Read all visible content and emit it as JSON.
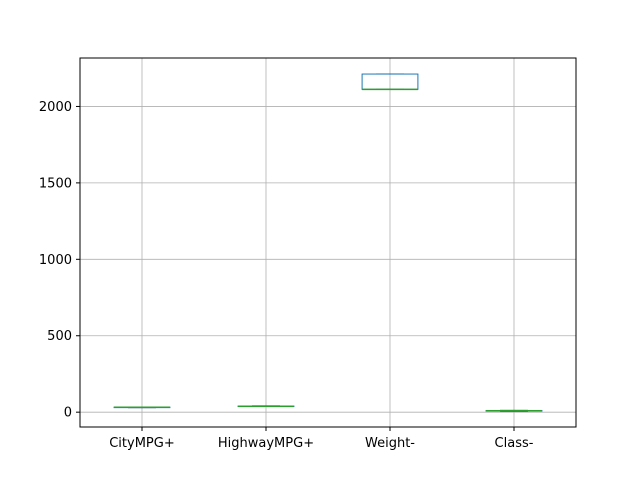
{
  "chart_data": {
    "type": "box",
    "title": "",
    "xlabel": "",
    "ylabel": "",
    "categories": [
      "CityMPG+",
      "HighwayMPG+",
      "Weight-",
      "Class-"
    ],
    "boxes": [
      {
        "name": "CityMPG+",
        "whislo": 30,
        "q1": 31,
        "med": 32,
        "q3": 33,
        "whishi": 34
      },
      {
        "name": "HighwayMPG+",
        "whislo": 37,
        "q1": 38,
        "med": 39,
        "q3": 40,
        "whishi": 41
      },
      {
        "name": "Weight-",
        "whislo": 2112,
        "q1": 2112,
        "med": 2112,
        "q3": 2212,
        "whishi": 2212
      },
      {
        "name": "Class-",
        "whislo": 6,
        "q1": 7,
        "med": 9,
        "q3": 11,
        "whishi": 12
      }
    ],
    "yticks": [
      0,
      500,
      1000,
      1500,
      2000
    ],
    "ylim": [
      -97,
      2317
    ],
    "grid": true,
    "colors": {
      "box": "#1f77b4",
      "median": "#2ca02c",
      "whisker": "#000000",
      "grid": "#b0b0b0",
      "axes": "#000000"
    }
  }
}
